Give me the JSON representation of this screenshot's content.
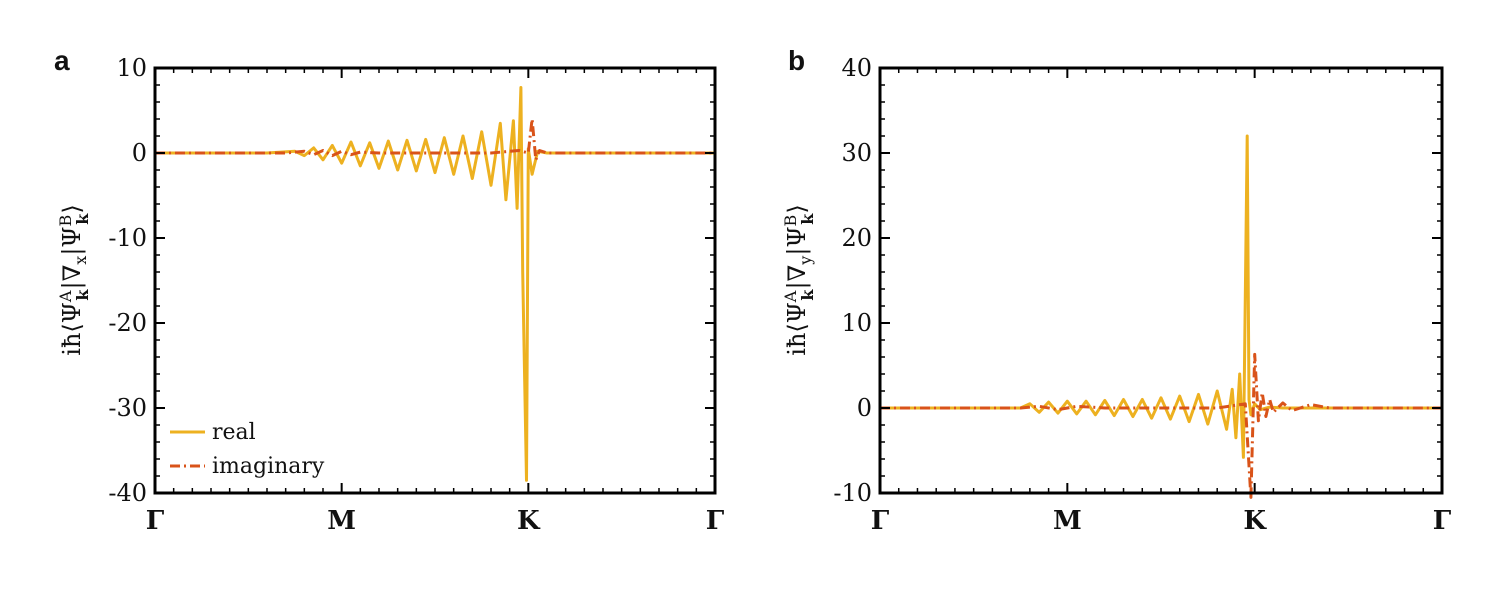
{
  "colors": {
    "real": "#EDB120",
    "imaginary": "#D95319",
    "axes": "#000000"
  },
  "legend": {
    "placement": "bottom-left",
    "real_label": "real",
    "imaginary_label": "imaginary"
  },
  "chart_data": [
    {
      "panel": "a",
      "type": "line",
      "ylabel": "iħ⟨Ψ_k^A|∇_x|Ψ_k^B⟩",
      "xcategories": [
        "Γ",
        "M",
        "K",
        "Γ"
      ],
      "xticks": [
        0,
        1,
        2,
        3
      ],
      "yticks": [
        "10",
        "0",
        "-10",
        "-20",
        "-30",
        "-40"
      ],
      "ytick_values": [
        10,
        0,
        -10,
        -20,
        -30,
        -40
      ],
      "ylim": [
        -40,
        10
      ],
      "xlim": [
        0,
        3
      ],
      "grid": false,
      "legend": "bottom-left",
      "series": [
        {
          "name": "real",
          "style": "solid",
          "x": [
            0,
            0.6,
            0.75,
            0.8,
            0.85,
            0.9,
            0.95,
            1.0,
            1.05,
            1.1,
            1.15,
            1.2,
            1.25,
            1.3,
            1.35,
            1.4,
            1.45,
            1.5,
            1.55,
            1.6,
            1.65,
            1.7,
            1.75,
            1.8,
            1.85,
            1.88,
            1.92,
            1.94,
            1.96,
            1.97,
            1.99,
            2.0,
            2.02,
            2.05,
            2.1,
            3.0
          ],
          "y": [
            0,
            0,
            0.2,
            -0.3,
            0.6,
            -0.8,
            0.9,
            -1.2,
            1.3,
            -1.5,
            1.2,
            -1.8,
            1.4,
            -2.0,
            1.5,
            -2.1,
            1.6,
            -2.3,
            1.8,
            -2.5,
            2.0,
            -3.0,
            2.5,
            -3.8,
            3.5,
            -5.5,
            3.8,
            -6.5,
            7.7,
            -14.0,
            -38.5,
            0.5,
            -2.5,
            0.2,
            0,
            0
          ]
        },
        {
          "name": "imaginary",
          "style": "dashdot",
          "x": [
            0,
            0.7,
            0.8,
            0.85,
            0.9,
            0.95,
            1.0,
            1.05,
            1.1,
            1.2,
            1.3,
            1.5,
            1.8,
            1.95,
            2.0,
            2.02,
            2.04,
            2.06,
            2.1,
            3.0
          ],
          "y": [
            0,
            0,
            0.2,
            -0.2,
            0.3,
            -0.3,
            0.2,
            -0.2,
            0.1,
            0,
            0,
            0,
            0,
            0.3,
            0,
            4.0,
            -0.8,
            0.3,
            0,
            0
          ]
        }
      ]
    },
    {
      "panel": "b",
      "type": "line",
      "ylabel": "iħ⟨Ψ_k^A|∇_y|Ψ_k^B⟩",
      "xcategories": [
        "Γ",
        "M",
        "K",
        "Γ"
      ],
      "xticks": [
        0,
        1,
        2,
        3
      ],
      "yticks": [
        "40",
        "30",
        "20",
        "10",
        "0",
        "-10"
      ],
      "ytick_values": [
        40,
        30,
        20,
        10,
        0,
        -10
      ],
      "ylim": [
        -10,
        40
      ],
      "xlim": [
        0,
        3
      ],
      "grid": false,
      "series": [
        {
          "name": "real",
          "style": "solid",
          "x": [
            0,
            0.75,
            0.8,
            0.85,
            0.9,
            0.95,
            1.0,
            1.05,
            1.1,
            1.15,
            1.2,
            1.25,
            1.3,
            1.35,
            1.4,
            1.45,
            1.5,
            1.55,
            1.6,
            1.65,
            1.7,
            1.75,
            1.8,
            1.85,
            1.88,
            1.9,
            1.92,
            1.94,
            1.96,
            1.97,
            1.98,
            2.0,
            2.03,
            2.08,
            2.15,
            3.0
          ],
          "y": [
            0,
            0,
            0.5,
            -0.5,
            0.7,
            -0.6,
            0.8,
            -0.7,
            0.8,
            -0.8,
            0.9,
            -0.9,
            1.0,
            -1.0,
            1.0,
            -1.2,
            1.2,
            -1.3,
            1.4,
            -1.6,
            1.6,
            -1.9,
            2.0,
            -2.5,
            2.2,
            -3.5,
            4.0,
            -5.8,
            32.0,
            1.0,
            -0.8,
            0.5,
            -0.2,
            0.1,
            0,
            0
          ]
        },
        {
          "name": "imaginary",
          "style": "dashdot",
          "x": [
            0,
            0.75,
            0.85,
            0.95,
            1.05,
            1.2,
            1.4,
            1.6,
            1.8,
            1.95,
            1.98,
            2.0,
            2.02,
            2.04,
            2.06,
            2.08,
            2.1,
            2.15,
            2.2,
            2.3,
            2.4,
            3.0
          ],
          "y": [
            0,
            0,
            0.2,
            -0.2,
            0.2,
            0,
            0,
            0,
            0,
            0.5,
            -10.5,
            6.3,
            -1.5,
            1.8,
            -1.0,
            1.0,
            -0.5,
            0.6,
            -0.3,
            0.4,
            0,
            0
          ]
        }
      ]
    }
  ]
}
